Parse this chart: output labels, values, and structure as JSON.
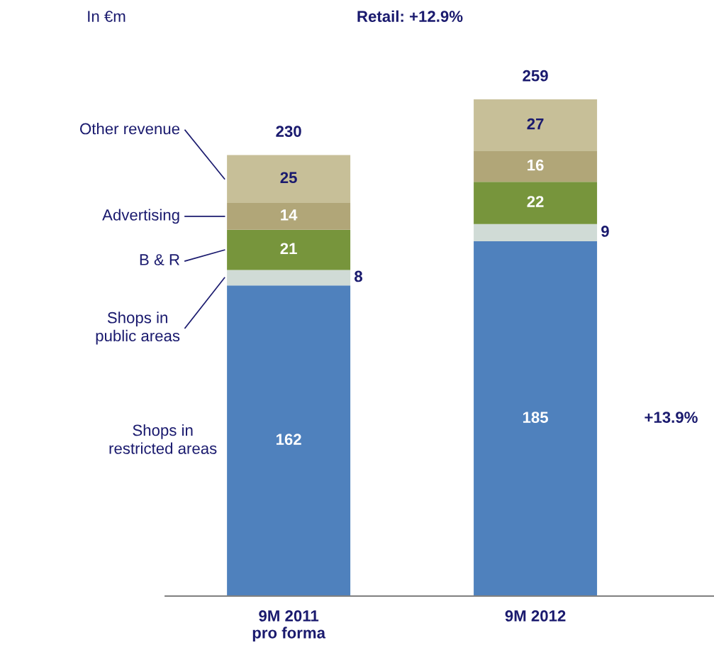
{
  "chart_data": {
    "type": "bar",
    "stacked": true,
    "title": "Retail: +12.9%",
    "categories": [
      "9M 2011 pro forma",
      "9M 2012"
    ],
    "series": [
      {
        "name": "Shops in restricted areas",
        "color": "#4f81bd",
        "values": [
          162,
          185
        ]
      },
      {
        "name": "Shops in public areas",
        "color": "#d0dbd6",
        "values": [
          8,
          9
        ]
      },
      {
        "name": "B & R",
        "color": "#77953c",
        "values": [
          21,
          22
        ]
      },
      {
        "name": "Advertising",
        "color": "#b1a678",
        "values": [
          14,
          16
        ]
      },
      {
        "name": "Other revenue",
        "color": "#c7bf98",
        "values": [
          25,
          27
        ]
      }
    ],
    "data_labels": true,
    "totals": [
      "230",
      "259"
    ],
    "annotations": [
      "In €m",
      "+13.9%"
    ],
    "tick_labels": "x",
    "grid": false
  }
}
